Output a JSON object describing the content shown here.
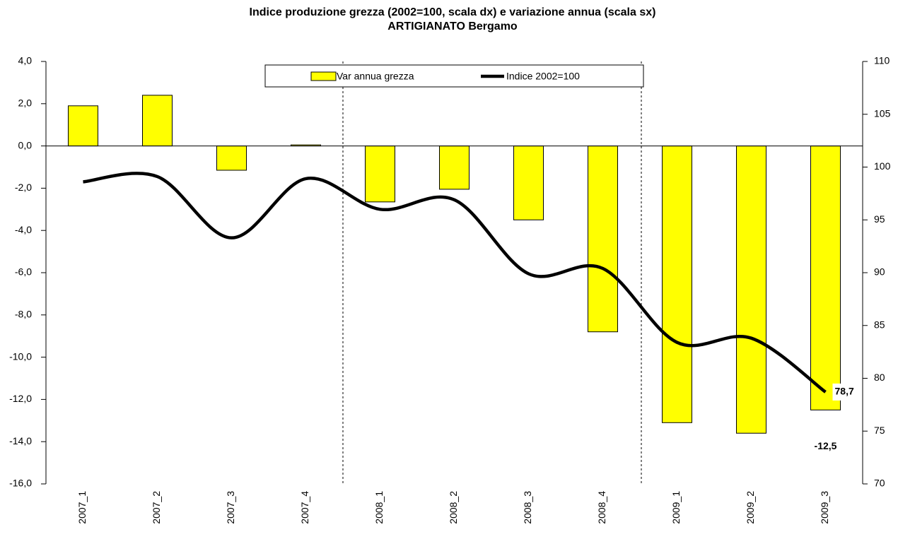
{
  "chart_data": {
    "type": "combo",
    "title": "Indice produzione grezza (2002=100, scala dx) e variazione annua (scala sx)",
    "subtitle": "ARTIGIANATO  Bergamo",
    "categories": [
      "2007_1",
      "2007_2",
      "2007_3",
      "2007_4",
      "2008_1",
      "2008_2",
      "2008_3",
      "2008_4",
      "2009_1",
      "2009_2",
      "2009_3"
    ],
    "series": [
      {
        "name": "Var annua  grezza",
        "type": "bar",
        "color": "#ffff00",
        "values": [
          1.9,
          2.4,
          -1.15,
          0.05,
          -2.65,
          -2.05,
          -3.5,
          -8.8,
          -13.1,
          -13.6,
          -12.5
        ],
        "value_labels": [
          null,
          null,
          null,
          null,
          null,
          null,
          null,
          null,
          null,
          null,
          "-12,5"
        ]
      },
      {
        "name": "Indice 2002=100",
        "type": "line",
        "color": "#000000",
        "axis": "y2",
        "values": [
          98.6,
          99.1,
          93.3,
          98.9,
          96.0,
          96.9,
          89.9,
          90.4,
          83.4,
          83.8,
          78.7
        ],
        "value_labels": [
          null,
          null,
          null,
          null,
          null,
          null,
          null,
          null,
          null,
          null,
          "78,7"
        ]
      }
    ],
    "ylim": [
      -16,
      4
    ],
    "yticks": [
      {
        "value": -16,
        "label": "-16,0"
      },
      {
        "value": -14,
        "label": "-14,0"
      },
      {
        "value": -12,
        "label": "-12,0"
      },
      {
        "value": -10,
        "label": "-10,0"
      },
      {
        "value": -8,
        "label": "-8,0"
      },
      {
        "value": -6,
        "label": "-6,0"
      },
      {
        "value": -4,
        "label": "-4,0"
      },
      {
        "value": -2,
        "label": "-2,0"
      },
      {
        "value": 0,
        "label": "0,0"
      },
      {
        "value": 2,
        "label": "2,0"
      },
      {
        "value": 4,
        "label": "4,0"
      }
    ],
    "y2lim": [
      70,
      110
    ],
    "y2ticks": [
      70,
      75,
      80,
      85,
      90,
      95,
      100,
      105,
      110
    ],
    "grid": false
  }
}
